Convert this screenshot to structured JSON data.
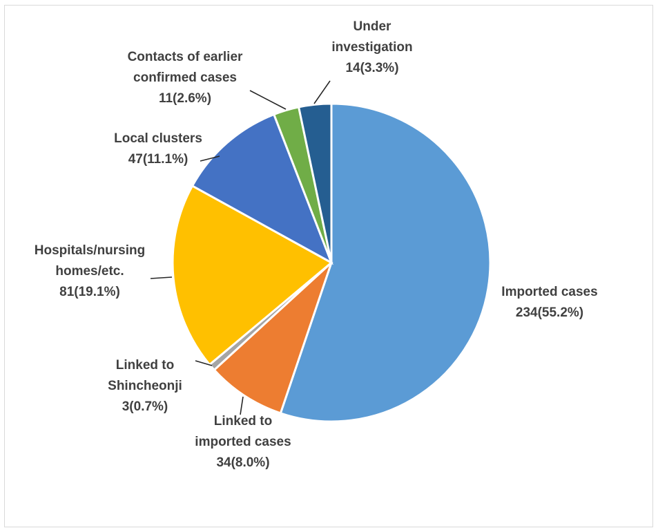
{
  "chart_data": {
    "type": "pie",
    "title": "",
    "slices": [
      {
        "name": "Imported cases",
        "value": 234,
        "percent": "55.2%",
        "color": "#5B9BD5",
        "label_lines": [
          "Imported cases",
          "234(55.2%)"
        ]
      },
      {
        "name": "Linked to imported cases",
        "value": 34,
        "percent": "8.0%",
        "color": "#ED7D31",
        "label_lines": [
          "Linked to",
          "imported cases",
          "34(8.0%)"
        ]
      },
      {
        "name": "Linked to Shincheonji",
        "value": 3,
        "percent": "0.7%",
        "color": "#A5A5A5",
        "label_lines": [
          "Linked to",
          "Shincheonji",
          "3(0.7%)"
        ]
      },
      {
        "name": "Hospitals/nursing homes/etc.",
        "value": 81,
        "percent": "19.1%",
        "color": "#FFC000",
        "label_lines": [
          "Hospitals/nursing",
          "homes/etc.",
          "81(19.1%)"
        ]
      },
      {
        "name": "Local clusters",
        "value": 47,
        "percent": "11.1%",
        "color": "#4472C4",
        "label_lines": [
          "Local clusters",
          "47(11.1%)"
        ]
      },
      {
        "name": "Contacts of earlier confirmed cases",
        "value": 11,
        "percent": "2.6%",
        "color": "#70AD47",
        "label_lines": [
          "Contacts of earlier",
          "confirmed cases",
          "11(2.6%)"
        ]
      },
      {
        "name": "Under investigation",
        "value": 14,
        "percent": "3.3%",
        "color": "#255E91",
        "label_lines": [
          "Under",
          "investigation",
          "14(3.3%)"
        ]
      }
    ]
  }
}
